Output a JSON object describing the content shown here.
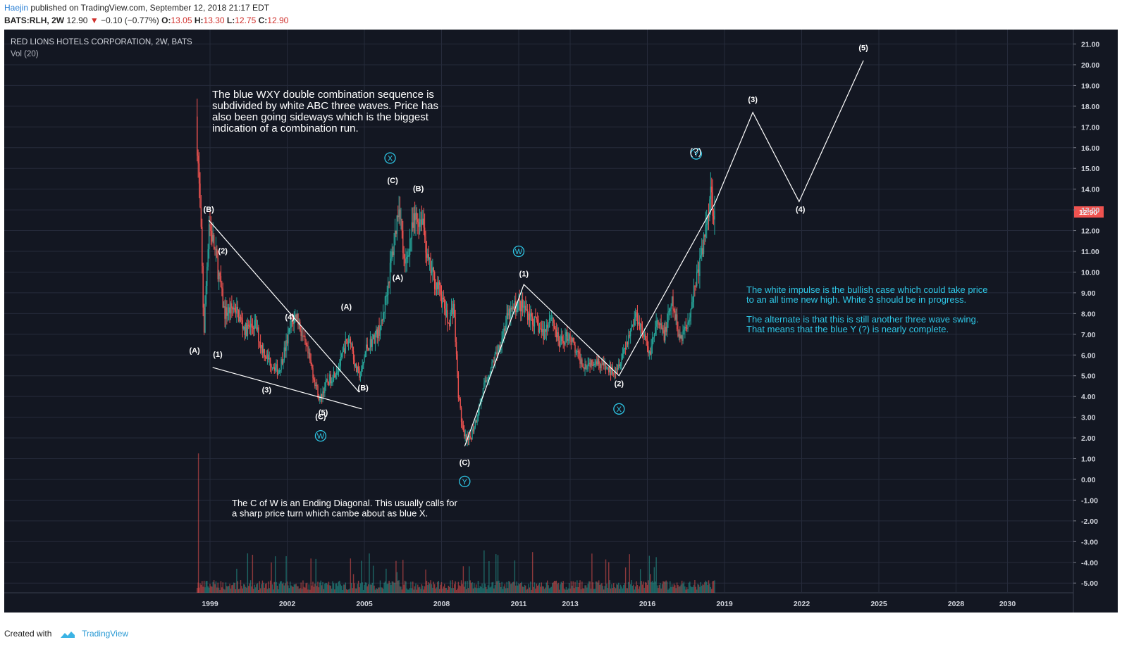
{
  "header": {
    "author": "Haejin",
    "published_text": " published on TradingView.com, September 12, 2018 21:17 EDT",
    "symbol": "BATS:RLH, 2W",
    "last": "12.90",
    "change_arrow": "▼",
    "change": "−0.10 (−0.77%)",
    "o_label": "O:",
    "o_value": "13.05",
    "h_label": "H:",
    "h_value": "13.30",
    "l_label": "L:",
    "l_value": "12.75",
    "c_label": "C:",
    "c_value": "12.90"
  },
  "legend": {
    "title": "RED LIONS HOTELS CORPORATION, 2W, BATS",
    "volume": "Vol (20)"
  },
  "footer": {
    "created_with": "Created with",
    "brand": "TradingView"
  },
  "colors": {
    "background": "#131722",
    "grid": "#262b3b",
    "up": "#26a69a",
    "down": "#ef5350",
    "annotation": "#ffffff",
    "cyan": "#2ec7e6",
    "price_badge": "#ef5350"
  },
  "chart_data": {
    "type": "candlestick",
    "title": "RED LIONS HOTELS CORPORATION, 2W, BATS",
    "ylim": [
      -5.4,
      21.6
    ],
    "y_ticks": [
      "21.00",
      "20.00",
      "19.00",
      "18.00",
      "17.00",
      "16.00",
      "15.00",
      "14.00",
      "13.00",
      "12.00",
      "11.00",
      "10.00",
      "9.00",
      "8.00",
      "7.00",
      "6.00",
      "5.00",
      "4.00",
      "3.00",
      "2.00",
      "1.00",
      "0.00",
      "-1.00",
      "-2.00",
      "-3.00",
      "-4.00",
      "-5.00"
    ],
    "x_ticks": [
      "1999",
      "2002",
      "2005",
      "2008",
      "2011",
      "2013",
      "2016",
      "2019",
      "2022",
      "2025",
      "2028",
      "2030"
    ],
    "x_tick_years": [
      1999,
      2002,
      2005,
      2008,
      2011,
      2013,
      2016,
      2019,
      2022,
      2025,
      2028,
      2030
    ],
    "current_price": "12.90",
    "price_path": [
      [
        1998.5,
        17.5
      ],
      [
        1998.6,
        14.5
      ],
      [
        1998.7,
        11.5
      ],
      [
        1998.8,
        7.0
      ],
      [
        1999.0,
        12.5
      ],
      [
        1999.3,
        10.5
      ],
      [
        1999.6,
        8.0
      ],
      [
        2000.0,
        8.3
      ],
      [
        2000.4,
        7.2
      ],
      [
        2000.8,
        7.5
      ],
      [
        2001.0,
        6.5
      ],
      [
        2001.3,
        5.8
      ],
      [
        2001.7,
        5.2
      ],
      [
        2002.0,
        6.5
      ],
      [
        2002.2,
        7.5
      ],
      [
        2002.4,
        8.0
      ],
      [
        2002.6,
        7.0
      ],
      [
        2002.9,
        5.8
      ],
      [
        2003.1,
        4.8
      ],
      [
        2003.3,
        3.8
      ],
      [
        2003.5,
        4.5
      ],
      [
        2003.8,
        5.0
      ],
      [
        2004.1,
        5.6
      ],
      [
        2004.3,
        6.5
      ],
      [
        2004.5,
        6.8
      ],
      [
        2004.7,
        5.3
      ],
      [
        2004.9,
        5.0
      ],
      [
        2005.1,
        6.3
      ],
      [
        2005.4,
        6.8
      ],
      [
        2005.7,
        7.4
      ],
      [
        2005.9,
        9.0
      ],
      [
        2006.2,
        11.5
      ],
      [
        2006.4,
        13.5
      ],
      [
        2006.6,
        10.0
      ],
      [
        2006.8,
        11.5
      ],
      [
        2007.0,
        12.5
      ],
      [
        2007.3,
        12.7
      ],
      [
        2007.5,
        10.5
      ],
      [
        2007.8,
        9.5
      ],
      [
        2008.0,
        9.0
      ],
      [
        2008.3,
        7.5
      ],
      [
        2008.5,
        8.5
      ],
      [
        2008.7,
        4.0
      ],
      [
        2008.9,
        2.0
      ],
      [
        2009.1,
        1.8
      ],
      [
        2009.4,
        3.0
      ],
      [
        2009.7,
        4.5
      ],
      [
        2010.0,
        5.5
      ],
      [
        2010.3,
        6.5
      ],
      [
        2010.6,
        7.8
      ],
      [
        2011.0,
        8.5
      ],
      [
        2011.3,
        8.2
      ],
      [
        2011.7,
        7.5
      ],
      [
        2012.0,
        7.0
      ],
      [
        2012.3,
        8.0
      ],
      [
        2012.6,
        6.5
      ],
      [
        2013.0,
        7.0
      ],
      [
        2013.3,
        6.0
      ],
      [
        2013.6,
        5.5
      ],
      [
        2014.0,
        5.8
      ],
      [
        2014.3,
        5.5
      ],
      [
        2014.6,
        5.2
      ],
      [
        2014.9,
        5.5
      ],
      [
        2015.2,
        6.5
      ],
      [
        2015.6,
        8.0
      ],
      [
        2015.9,
        7.0
      ],
      [
        2016.1,
        6.0
      ],
      [
        2016.4,
        7.5
      ],
      [
        2016.7,
        7.0
      ],
      [
        2017.0,
        8.5
      ],
      [
        2017.3,
        6.8
      ],
      [
        2017.6,
        7.5
      ],
      [
        2017.9,
        9.5
      ],
      [
        2018.1,
        10.5
      ],
      [
        2018.3,
        12.0
      ],
      [
        2018.5,
        14.0
      ],
      [
        2018.62,
        12.9
      ]
    ],
    "projection": {
      "labels": [
        "(3)",
        "(4)",
        "(5)"
      ],
      "points": [
        [
          2018.62,
          13.3
        ],
        [
          2020.1,
          17.7
        ],
        [
          2021.9,
          13.4
        ],
        [
          2024.4,
          20.2
        ]
      ]
    },
    "annotations": {
      "top_text": [
        "The blue WXY double combination sequence is",
        "subdivided by white ABC three waves. Price has",
        "also been going sideways which is the biggest",
        "indication of a combination run."
      ],
      "bottom_text": [
        "The C of W is an Ending Diagonal. This usually calls for",
        "a sharp price turn which cambe about as blue X."
      ],
      "right_text_1": [
        "The white impulse is the bullish case which could take price",
        "to an all time new high. White 3 should be in progress."
      ],
      "right_text_2": [
        "The alternate is that this is still another three wave swing.",
        "That means that the blue Y (?) is nearly complete."
      ],
      "question": "(?)"
    },
    "wave_labels": [
      {
        "text": "(B)",
        "x": 1998.95,
        "y": 12.9
      },
      {
        "text": "(2)",
        "x": 1999.5,
        "y": 10.9
      },
      {
        "text": "(A)",
        "x": 1998.4,
        "y": 6.1
      },
      {
        "text": "(1)",
        "x": 1999.3,
        "y": 5.9
      },
      {
        "text": "(3)",
        "x": 2001.2,
        "y": 4.2
      },
      {
        "text": "(4)",
        "x": 2002.1,
        "y": 7.7
      },
      {
        "text": "(5)",
        "x": 2003.4,
        "y": 3.1
      },
      {
        "text": "(C)",
        "x": 2003.3,
        "y": 2.9
      },
      {
        "text": "(A)",
        "x": 2004.3,
        "y": 8.2
      },
      {
        "text": "(B)",
        "x": 2004.95,
        "y": 4.3
      },
      {
        "text": "(C)",
        "x": 2006.1,
        "y": 14.3
      },
      {
        "text": "(B)",
        "x": 2007.1,
        "y": 13.9
      },
      {
        "text": "(A)",
        "x": 2006.3,
        "y": 9.6
      },
      {
        "text": "(C)",
        "x": 2008.9,
        "y": 0.7
      },
      {
        "text": "(1)",
        "x": 2011.2,
        "y": 9.8
      },
      {
        "text": "(2)",
        "x": 2014.9,
        "y": 4.5
      },
      {
        "text": "(3)",
        "x": 2020.1,
        "y": 18.2
      },
      {
        "text": "(4)",
        "x": 2021.95,
        "y": 12.9
      },
      {
        "text": "(5)",
        "x": 2024.4,
        "y": 20.7
      }
    ],
    "circle_labels": [
      {
        "text": "X",
        "x": 2006.0,
        "y": 15.5
      },
      {
        "text": "W",
        "x": 2003.3,
        "y": 2.1
      },
      {
        "text": "W",
        "x": 2011.0,
        "y": 11.0
      },
      {
        "text": "Y",
        "x": 2008.9,
        "y": -0.1
      },
      {
        "text": "X",
        "x": 2014.9,
        "y": 3.4
      },
      {
        "text": "Y",
        "x": 2017.9,
        "y": 15.7
      }
    ],
    "line_segments": [
      [
        [
          1998.95,
          12.5
        ],
        [
          2004.8,
          4.2
        ]
      ],
      [
        [
          1999.1,
          5.4
        ],
        [
          2004.9,
          3.4
        ]
      ],
      [
        [
          2008.9,
          1.6
        ],
        [
          2011.2,
          9.4
        ],
        [
          2014.9,
          5.0
        ],
        [
          2018.62,
          13.3
        ]
      ]
    ]
  }
}
